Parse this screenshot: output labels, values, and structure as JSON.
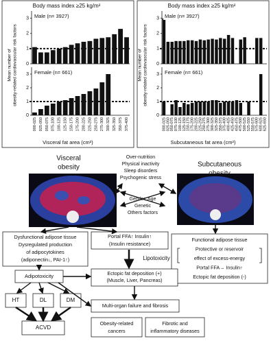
{
  "chart_data": [
    {
      "type": "bar",
      "title": "Body mass index ≥25 kg/m²",
      "label": "Male (n= 3927)",
      "ylabel": [
        "Mean number of",
        "obesity-related cardiovascular risk factors"
      ],
      "values": [
        1.1,
        0.75,
        0.75,
        0.9,
        1.0,
        1.1,
        1.25,
        1.35,
        1.45,
        1.5,
        1.65,
        1.7,
        1.75,
        1.95,
        2.3,
        1.75
      ],
      "color": "#111111",
      "ylim": [
        0,
        3.3
      ],
      "yticks": [
        0,
        1,
        2,
        3
      ],
      "reference_line": 1
    },
    {
      "type": "bar",
      "label": "Female (n= 661)",
      "xlabel": "Visceral fat area (cm²)",
      "categories": [
        "000-025",
        "025-050",
        "050-075",
        "075-100",
        "100-125",
        "125-150",
        "150-175",
        "175-200",
        "200-225",
        "225-250",
        "250-275",
        "275-300",
        "300-325",
        "325-350",
        "350-375",
        "375-400"
      ],
      "values": [
        0.2,
        0.45,
        0.7,
        0.85,
        1.0,
        1.1,
        1.25,
        1.4,
        1.55,
        1.75,
        1.95,
        2.4,
        3.0,
        null,
        null,
        null
      ],
      "color": "#111111",
      "ylim": [
        0,
        3.3
      ],
      "yticks": [
        0,
        1,
        2,
        3
      ],
      "reference_line": 1
    },
    {
      "type": "bar",
      "title": "Body mass index ≥25 kg/m²",
      "label": "Male (n= 3927)",
      "ylabel": [
        "Mean number of",
        "obesity-related cardiovascular risk factors"
      ],
      "values": [
        3.0,
        1.45,
        1.45,
        1.5,
        1.5,
        1.5,
        1.55,
        1.55,
        1.5,
        1.6,
        1.55,
        1.6,
        1.65,
        1.6,
        1.7,
        1.65,
        1.9,
        1.7,
        null,
        1.6,
        1.75,
        null,
        null,
        1.7,
        1.7,
        null
      ],
      "color": "#111111",
      "ylim": [
        0,
        3.3
      ],
      "yticks": [
        0,
        1,
        2,
        3
      ],
      "reference_line": 1
    },
    {
      "type": "bar",
      "label": "Female (n= 661)",
      "xlabel": "Subcutaneous fat area (cm²)",
      "categories": [
        "000-025",
        "025-050",
        "050-075",
        "075-100",
        "100-125",
        "125-150",
        "150-175",
        "175-200",
        "200-225",
        "225-250",
        "250-275",
        "275-300",
        "300-325",
        "325-350",
        "350-375",
        "375-400",
        "400-425",
        "425-450",
        "450-475",
        "475-500",
        "500-525",
        "525-550",
        "550-575",
        "575-600",
        "600-625",
        "625-650"
      ],
      "values": [
        1.0,
        null,
        0.8,
        1.1,
        0.6,
        0.9,
        0.8,
        0.9,
        1.0,
        1.0,
        1.0,
        1.0,
        1.1,
        1.1,
        0.9,
        1.0,
        1.0,
        1.0,
        1.1,
        0.9,
        null,
        1.0,
        null,
        null,
        3.0,
        null
      ],
      "color": "#111111",
      "ylim": [
        0,
        3.3
      ],
      "yticks": [
        0,
        1,
        2,
        3
      ],
      "reference_line": 1
    }
  ],
  "diagram": {
    "visceral_label": [
      "Visceral",
      "obesity"
    ],
    "subcutaneous_label": [
      "Subcutaneous",
      "obesity"
    ],
    "lifestyle_factors": [
      "Over-nutrition",
      "Physical inactivity",
      "Sleep disorders",
      "Psychogenic stress"
    ],
    "background_factors": [
      "Gender, Age",
      "Genetic",
      "Others factors"
    ],
    "dysfunctional_tissue": [
      "Dysfunctional adipose tissue",
      "Dysregulated production",
      "of adipocytokines",
      "(adiponectin↓, PAI-1↑)"
    ],
    "portal_ffa": [
      "Portal FFA↑  Insulin↑",
      "(Insulin resistance)"
    ],
    "lipotoxicity": "Lipotoxicity",
    "functional_tissue": [
      "Functional adipose tissue",
      "Protective or reservoir",
      "effect of excess-energy",
      "Portal FFA→  Insulin↑",
      "Ectopic fat deposition (-)"
    ],
    "adipotoxicity": "Adipotoxicity",
    "ectopic_fat": [
      "Ectopic fat deposition (+)",
      "(Muscle, Liver, Pancreas)"
    ],
    "complications": [
      "HT",
      "DL",
      "DM"
    ],
    "multi_organ": "Multi-organ failure and fibrosis",
    "acvd": "ACVD",
    "cancers": [
      "Obesity-related",
      "cancers"
    ],
    "fibrotic": [
      "Fibrotic and",
      "inflammatory diseases"
    ]
  }
}
